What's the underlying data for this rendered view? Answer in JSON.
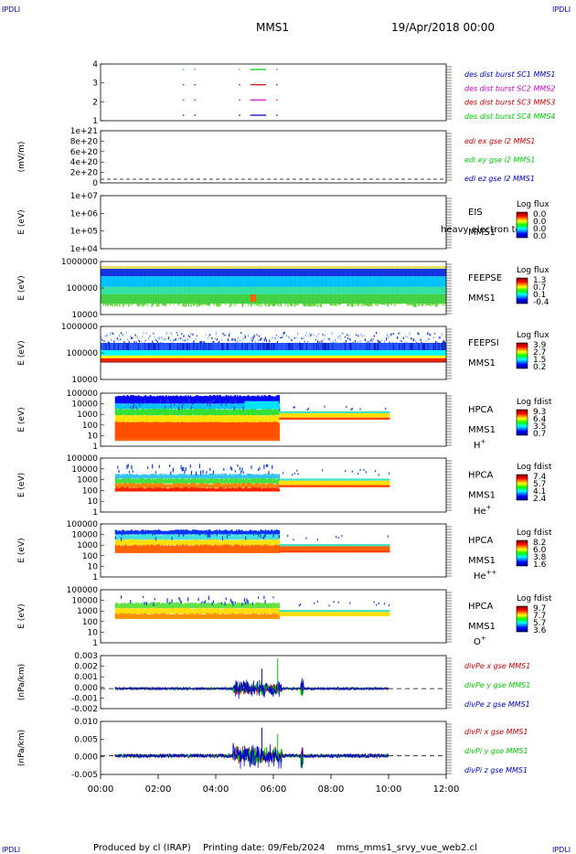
{
  "header": {
    "corner_tl": "IPDLI",
    "corner_tr": "IPDLI",
    "corner_bl": "IPDLI",
    "corner_br": "IPDLI",
    "title": "MMS1",
    "date": "19/Apr/2018 00:00"
  },
  "footer": {
    "produced": "Produced by cl (IRAP)",
    "printing": "Printing date: 09/Feb/2024",
    "file": "mms_mms1_srvy_vue_web2.cl"
  },
  "colors": {
    "blue": "#0000cc",
    "magenta": "#cc00cc",
    "red": "#cc0000",
    "green": "#00cc00",
    "dashed": "#000000"
  },
  "chart_data": [
    {
      "type": "line",
      "id": "burst",
      "yticks": [
        "4",
        "3",
        "2",
        "1"
      ],
      "legend": [
        {
          "text": "des dist burst SC1 MMS1",
          "color": "#0000cc"
        },
        {
          "text": "des dist burst SC2 MMS2",
          "color": "#cc00cc"
        },
        {
          "text": "des dist burst SC3 MMS3",
          "color": "#cc0000"
        },
        {
          "text": "des dist burst SC4 MMS4",
          "color": "#00cc00"
        }
      ],
      "segments": [
        {
          "level": 4,
          "color": "#00cc00",
          "x": [
            [
              2.85,
              2.9
            ],
            [
              3.25,
              3.3
            ],
            [
              4.8,
              4.85
            ],
            [
              5.2,
              5.75
            ],
            [
              6.1,
              6.15
            ]
          ]
        },
        {
          "level": 3,
          "color": "#cc0000",
          "x": [
            [
              2.85,
              2.9
            ],
            [
              3.25,
              3.3
            ],
            [
              4.8,
              4.85
            ],
            [
              5.2,
              5.75
            ],
            [
              6.1,
              6.15
            ]
          ]
        },
        {
          "level": 2,
          "color": "#cc00cc",
          "x": [
            [
              2.85,
              2.9
            ],
            [
              3.25,
              3.3
            ],
            [
              4.8,
              4.85
            ],
            [
              5.2,
              5.75
            ],
            [
              6.1,
              6.15
            ]
          ]
        },
        {
          "level": 1,
          "color": "#0000cc",
          "x": [
            [
              2.85,
              2.9
            ],
            [
              3.25,
              3.3
            ],
            [
              4.8,
              4.85
            ],
            [
              5.2,
              5.75
            ],
            [
              6.1,
              6.15
            ]
          ]
        }
      ]
    },
    {
      "type": "line",
      "id": "edi",
      "ylabel": "(mV/m)",
      "yticks": [
        "1e+21",
        "8e+20",
        "6e+20",
        "4e+20",
        "2e+20",
        "0"
      ],
      "legend": [
        {
          "text": "edi ex gse l2 MMS1",
          "color": "#cc0000"
        },
        {
          "text": "edi ey gse l2 MMS1",
          "color": "#00cc00"
        },
        {
          "text": "edi ez gse l2 MMS1",
          "color": "#0000cc"
        }
      ]
    },
    {
      "type": "heatmap",
      "id": "eis",
      "ylabel": "E (eV)",
      "yticks": [
        "1e+07",
        "1e+06",
        "1e+05",
        "1e+04"
      ],
      "side_labels": [
        "EIS",
        "MMS1"
      ],
      "overlay_text": "heavy electron tof",
      "colorbar_title": "Log flux",
      "colorbar_ticks": [
        "0.0",
        "0.0",
        "0.0",
        "0.0"
      ]
    },
    {
      "type": "heatmap",
      "id": "feepse",
      "ylabel": "E (eV)",
      "yticks": [
        "1000000",
        "100000",
        "10000"
      ],
      "side_labels": [
        "FEEPSE",
        "MMS1"
      ],
      "colorbar_title": "Log flux",
      "colorbar_ticks": [
        "1.3",
        "0.7",
        "0.1",
        "-0.4"
      ],
      "x_range": [
        0.0,
        12.0
      ]
    },
    {
      "type": "heatmap",
      "id": "feepsi",
      "ylabel": "E (eV)",
      "yticks": [
        "1000000",
        "100000",
        "10000"
      ],
      "side_labels": [
        "FEEPSI",
        "MMS1"
      ],
      "colorbar_title": "Log flux",
      "colorbar_ticks": [
        "3.9",
        "2.7",
        "1.5",
        "0.2"
      ],
      "x_range": [
        0.0,
        12.0
      ]
    },
    {
      "type": "heatmap",
      "id": "hpca_h",
      "ylabel": "E (eV)",
      "yticks": [
        "100000",
        "10000",
        "1000",
        "100",
        "10",
        "1"
      ],
      "side_labels": [
        "HPCA",
        "MMS1"
      ],
      "species_base": "H",
      "species_sup": "+",
      "colorbar_title": "Log fdist",
      "colorbar_ticks": [
        "9.3",
        "6.4",
        "3.5",
        "0.7"
      ],
      "x_range": [
        0.5,
        10.0
      ]
    },
    {
      "type": "heatmap",
      "id": "hpca_he",
      "ylabel": "E (eV)",
      "yticks": [
        "100000",
        "10000",
        "1000",
        "100",
        "10",
        "1"
      ],
      "side_labels": [
        "HPCA",
        "MMS1"
      ],
      "species_base": "He",
      "species_sup": "+",
      "colorbar_title": "Log fdist",
      "colorbar_ticks": [
        "7.4",
        "5.7",
        "4.1",
        "2.4"
      ],
      "x_range": [
        0.5,
        10.0
      ]
    },
    {
      "type": "heatmap",
      "id": "hpca_hepp",
      "ylabel": "E (eV)",
      "yticks": [
        "100000",
        "10000",
        "1000",
        "100",
        "10",
        "1"
      ],
      "side_labels": [
        "HPCA",
        "MMS1"
      ],
      "species_base": "He",
      "species_sup": "++",
      "colorbar_title": "Log fdist",
      "colorbar_ticks": [
        "8.2",
        "6.0",
        "3.8",
        "1.6"
      ],
      "x_range": [
        0.5,
        10.0
      ]
    },
    {
      "type": "heatmap",
      "id": "hpca_o",
      "ylabel": "E (eV)",
      "yticks": [
        "100000",
        "10000",
        "1000",
        "100",
        "10",
        "1"
      ],
      "side_labels": [
        "HPCA",
        "MMS1"
      ],
      "species_base": "O",
      "species_sup": "+",
      "colorbar_title": "Log fdist",
      "colorbar_ticks": [
        "9.7",
        "7.7",
        "5.7",
        "3.6"
      ],
      "x_range": [
        0.5,
        10.0
      ]
    },
    {
      "type": "line",
      "id": "divpe",
      "ylabel": "(nPa/km)",
      "yticks": [
        "0.003",
        "0.002",
        "0.001",
        "0.000",
        "-0.001",
        "-0.002"
      ],
      "ylim": [
        -0.002,
        0.0033
      ],
      "legend": [
        {
          "text": "divPe x gse MMS1",
          "color": "#cc0000"
        },
        {
          "text": "divPe y gse MMS1",
          "color": "#00cc00"
        },
        {
          "text": "divPe z gse MMS1",
          "color": "#0000cc"
        }
      ],
      "x_range": [
        0.5,
        10.0
      ]
    },
    {
      "type": "line",
      "id": "divpi",
      "ylabel": "(nPa/km)",
      "yticks": [
        "0.010",
        "0.005",
        "0.000",
        "-0.005"
      ],
      "ylim": [
        -0.006,
        0.011
      ],
      "legend": [
        {
          "text": "divPi x gse MMS1",
          "color": "#cc0000"
        },
        {
          "text": "divPi y gse MMS1",
          "color": "#00cc00"
        },
        {
          "text": "divPi z gse MMS1",
          "color": "#0000cc"
        }
      ],
      "x_range": [
        0.5,
        10.0
      ]
    }
  ],
  "x_axis": {
    "ticks": [
      "00:00",
      "02:00",
      "04:00",
      "06:00",
      "08:00",
      "10:00",
      "12:00"
    ],
    "range": [
      0,
      12
    ]
  }
}
